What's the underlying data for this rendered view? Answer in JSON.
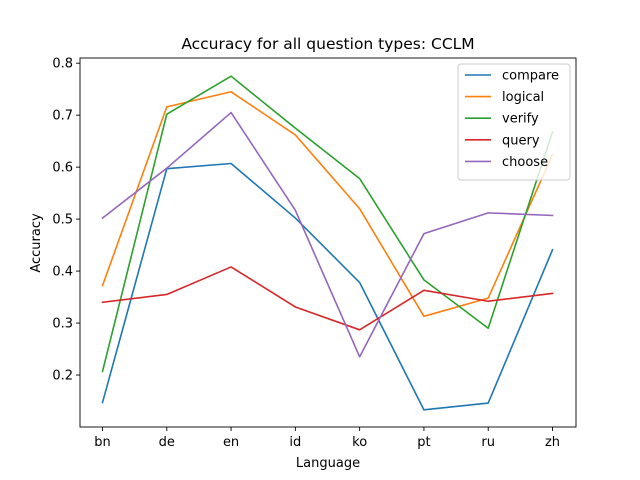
{
  "chart_data": {
    "type": "line",
    "title": "Accuracy for all question types: CCLM",
    "xlabel": "Language",
    "ylabel": "Accuracy",
    "categories": [
      "bn",
      "de",
      "en",
      "id",
      "ko",
      "pt",
      "ru",
      "zh"
    ],
    "ylim": [
      0.1,
      0.81
    ],
    "yticks": [
      0.2,
      0.3,
      0.4,
      0.5,
      0.6,
      0.7,
      0.8
    ],
    "ytick_labels": [
      "0.2",
      "0.3",
      "0.4",
      "0.5",
      "0.6",
      "0.7",
      "0.8"
    ],
    "grid": false,
    "legend_position": "top-right",
    "series": [
      {
        "name": "compare",
        "color": "#1f77b4",
        "values": [
          0.147,
          0.597,
          0.607,
          0.502,
          0.378,
          0.133,
          0.146,
          0.441
        ]
      },
      {
        "name": "logical",
        "color": "#ff7f0e",
        "values": [
          0.372,
          0.716,
          0.745,
          0.662,
          0.52,
          0.313,
          0.348,
          0.624
        ]
      },
      {
        "name": "verify",
        "color": "#2ca02c",
        "values": [
          0.207,
          0.702,
          0.775,
          0.675,
          0.578,
          0.383,
          0.29,
          0.668
        ]
      },
      {
        "name": "query",
        "color": "#d62728",
        "values": [
          0.34,
          0.355,
          0.408,
          0.331,
          0.287,
          0.363,
          0.342,
          0.357
        ]
      },
      {
        "name": "choose",
        "color": "#9467bd",
        "values": [
          0.502,
          0.598,
          0.705,
          0.517,
          0.235,
          0.472,
          0.512,
          0.507
        ]
      }
    ]
  }
}
